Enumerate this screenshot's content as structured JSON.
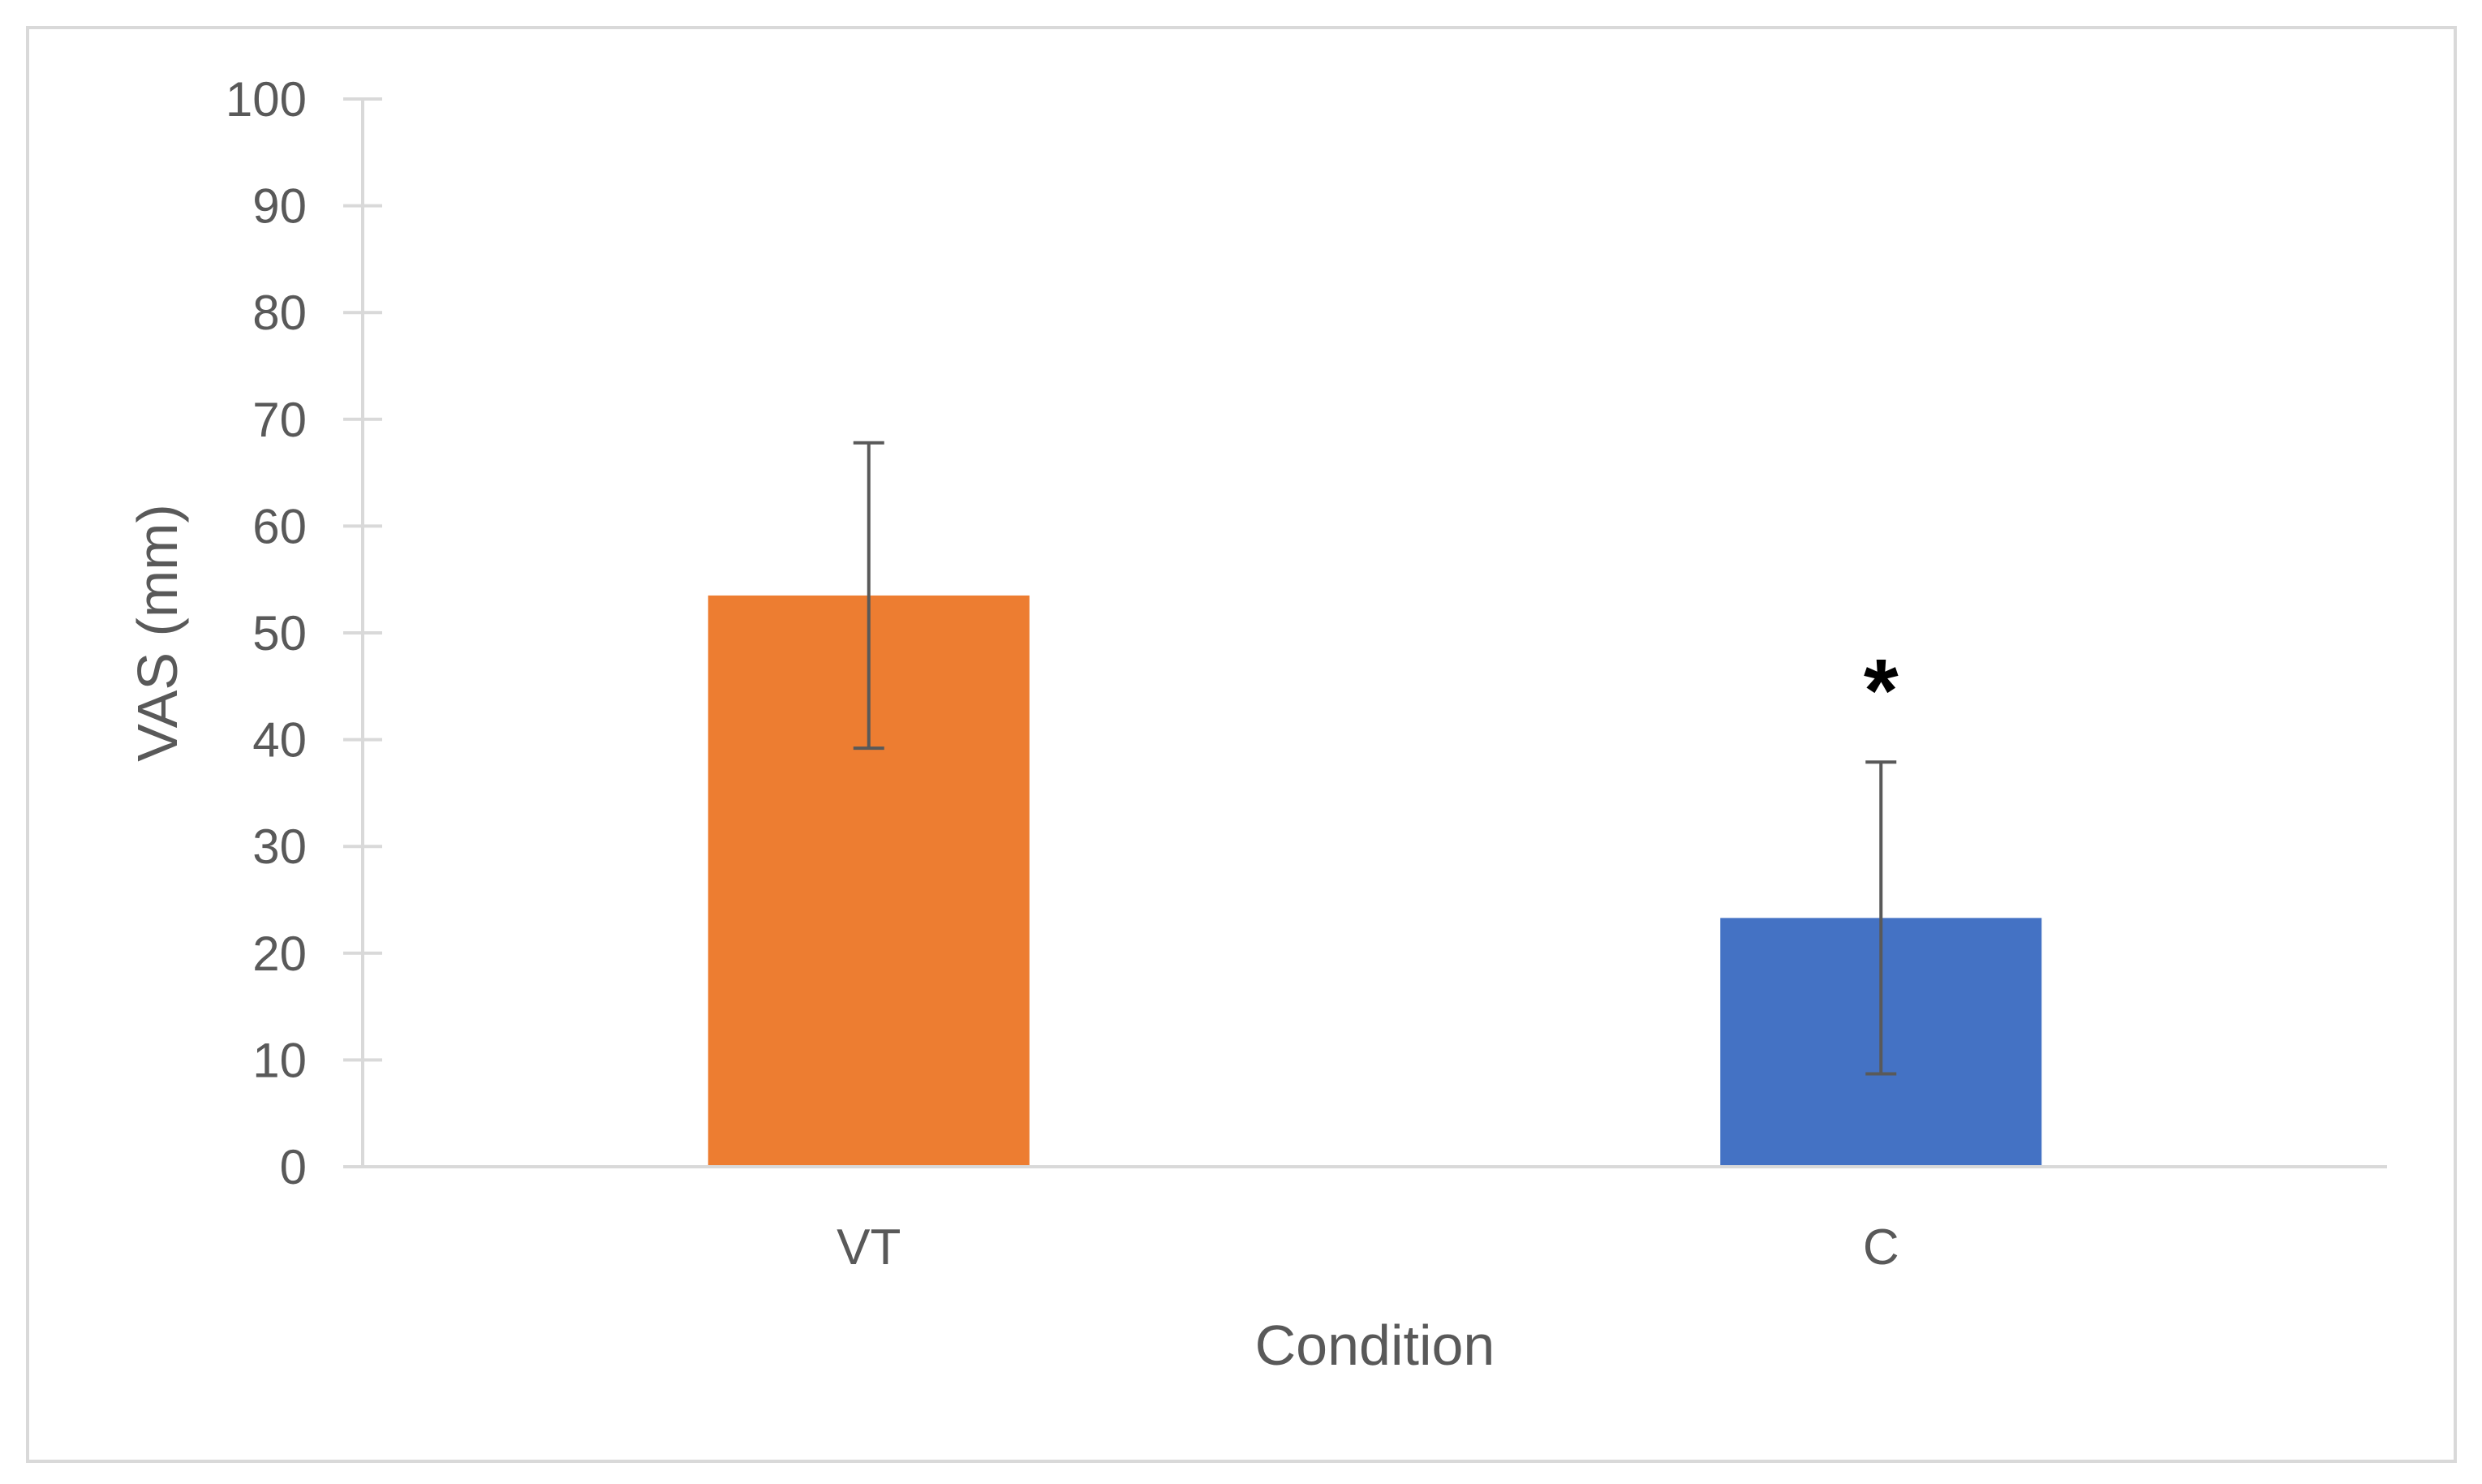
{
  "chart_data": {
    "type": "bar",
    "title": "",
    "xlabel": "Condition",
    "ylabel": "VAS (mm)",
    "ylim": [
      0,
      100
    ],
    "yticks": [
      0,
      10,
      20,
      30,
      40,
      50,
      60,
      70,
      80,
      90,
      100
    ],
    "grid": false,
    "categories": [
      "VT",
      "C"
    ],
    "values": [
      53.5,
      23.3
    ],
    "error": [
      14.3,
      14.6
    ],
    "colors": [
      "#ED7D31",
      "#4472C4"
    ],
    "annotations": [
      {
        "category": "C",
        "text": "*"
      }
    ]
  }
}
